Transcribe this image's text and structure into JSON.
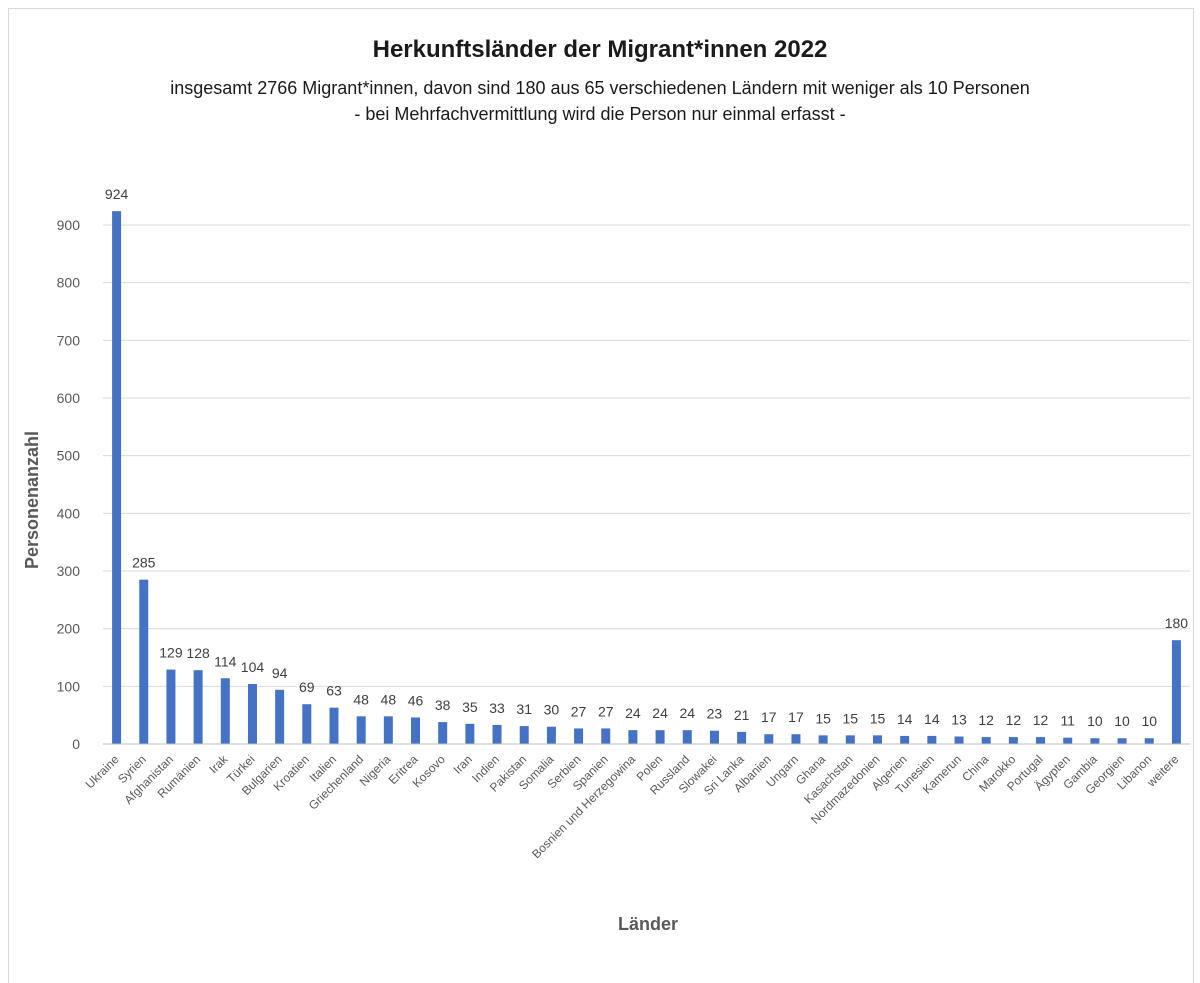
{
  "chart_data": {
    "type": "bar",
    "title": "Herkunftsländer der Migrant*innen 2022",
    "subtitle_lines": [
      "insgesamt 2766 Migrant*innen, davon sind 180 aus 65 verschiedenen Ländern mit weniger als 10 Personen",
      "- bei Mehrfachvermittlung wird die Person nur einmal erfasst -"
    ],
    "xlabel": "Länder",
    "ylabel": "Personenanzahl",
    "ylim": [
      0,
      900
    ],
    "yticks": [
      0,
      100,
      200,
      300,
      400,
      500,
      600,
      700,
      800,
      900
    ],
    "grid": true,
    "bar_color": "#4472c4",
    "categories": [
      "Ukraine",
      "Syrien",
      "Afghanistan",
      "Rumänien",
      "Irak",
      "Türkei",
      "Bulgarien",
      "Kroatien",
      "Italien",
      "Griechenland",
      "Nigeria",
      "Eritrea",
      "Kosovo",
      "Iran",
      "Indien",
      "Pakistan",
      "Somalia",
      "Serbien",
      "Spanien",
      "Bosnien und Herzegowina",
      "Polen",
      "Russland",
      "Slowakei",
      "Sri Lanka",
      "Albanien",
      "Ungarn",
      "Ghana",
      "Kasachstan",
      "Nordmazedonien",
      "Algerien",
      "Tunesien",
      "Kamerun",
      "China",
      "Marokko",
      "Portugal",
      "Ägypten",
      "Gambia",
      "Georgien",
      "Libanon",
      "weitere"
    ],
    "values": [
      924,
      285,
      129,
      128,
      114,
      104,
      94,
      69,
      63,
      48,
      48,
      46,
      38,
      35,
      33,
      31,
      30,
      27,
      27,
      24,
      24,
      24,
      23,
      21,
      17,
      17,
      15,
      15,
      15,
      14,
      14,
      13,
      12,
      12,
      12,
      11,
      10,
      10,
      10,
      180
    ]
  }
}
